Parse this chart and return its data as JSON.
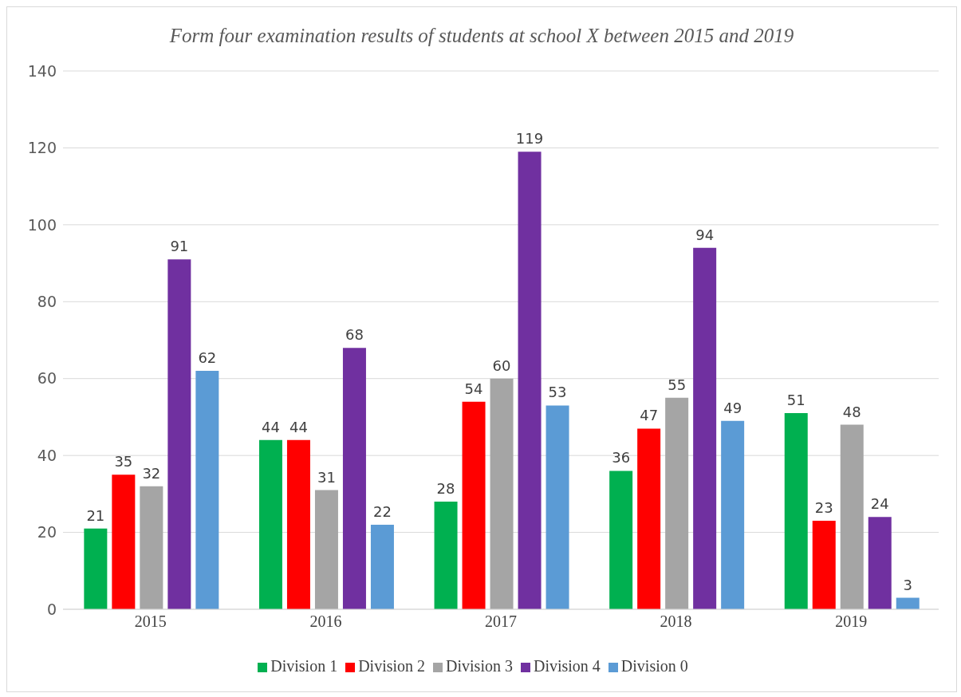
{
  "chart_data": {
    "type": "bar",
    "title": "Form four examination results of students at school X between 2015 and 2019",
    "categories": [
      "2015",
      "2016",
      "2017",
      "2018",
      "2019"
    ],
    "series": [
      {
        "name": "Division 1",
        "color": "#00b050",
        "values": [
          21,
          44,
          28,
          36,
          51
        ]
      },
      {
        "name": "Division 2",
        "color": "#ff0000",
        "values": [
          35,
          44,
          54,
          47,
          23
        ]
      },
      {
        "name": "Division 3",
        "color": "#a5a5a5",
        "values": [
          32,
          31,
          60,
          55,
          48
        ]
      },
      {
        "name": "Division 4",
        "color": "#7030a0",
        "values": [
          91,
          68,
          119,
          94,
          24
        ]
      },
      {
        "name": "Division 0",
        "color": "#5b9bd5",
        "values": [
          62,
          22,
          53,
          49,
          3
        ]
      }
    ],
    "ylim": [
      0,
      140
    ],
    "yticks": [
      0,
      20,
      40,
      60,
      80,
      100,
      120,
      140
    ],
    "grid": "y",
    "legend": "bottom",
    "data_labels": true
  }
}
